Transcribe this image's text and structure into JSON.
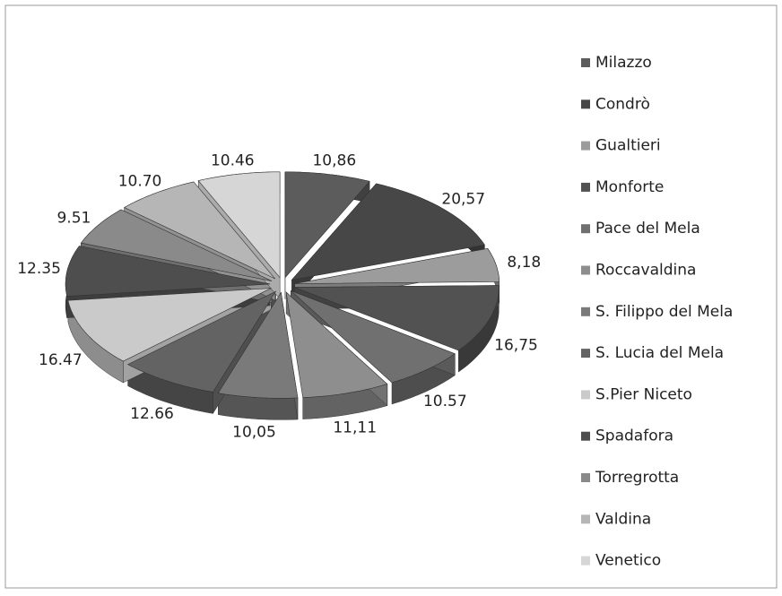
{
  "chart_data": {
    "type": "pie3d",
    "categories": [
      "Milazzo",
      "Condrò",
      "Gualtieri",
      "Monforte",
      "Pace del Mela",
      "Roccavaldina",
      "S. Filippo del Mela",
      "S. Lucia del Mela",
      "S.Pier Niceto",
      "Spadafora",
      "Torregrotta",
      "Valdina",
      "Venetico"
    ],
    "values": [
      10.86,
      20.57,
      8.18,
      16.75,
      10.57,
      11.11,
      10.05,
      12.66,
      16.47,
      12.35,
      9.51,
      10.7,
      10.46
    ],
    "value_labels": [
      "10,86",
      "20,57",
      "8,18",
      "16,75",
      "10.57",
      "11,11",
      "10,05",
      "12.66",
      "16.47",
      "12.35",
      "9.51",
      "10.70",
      "10.46"
    ],
    "colors": [
      "#5c5c5c",
      "#474747",
      "#9c9c9c",
      "#525252",
      "#707070",
      "#8e8e8e",
      "#7a7a7a",
      "#636363",
      "#cacaca",
      "#4e4e4e",
      "#8a8a8a",
      "#b6b6b6",
      "#d6d6d6"
    ],
    "legend": "right"
  }
}
